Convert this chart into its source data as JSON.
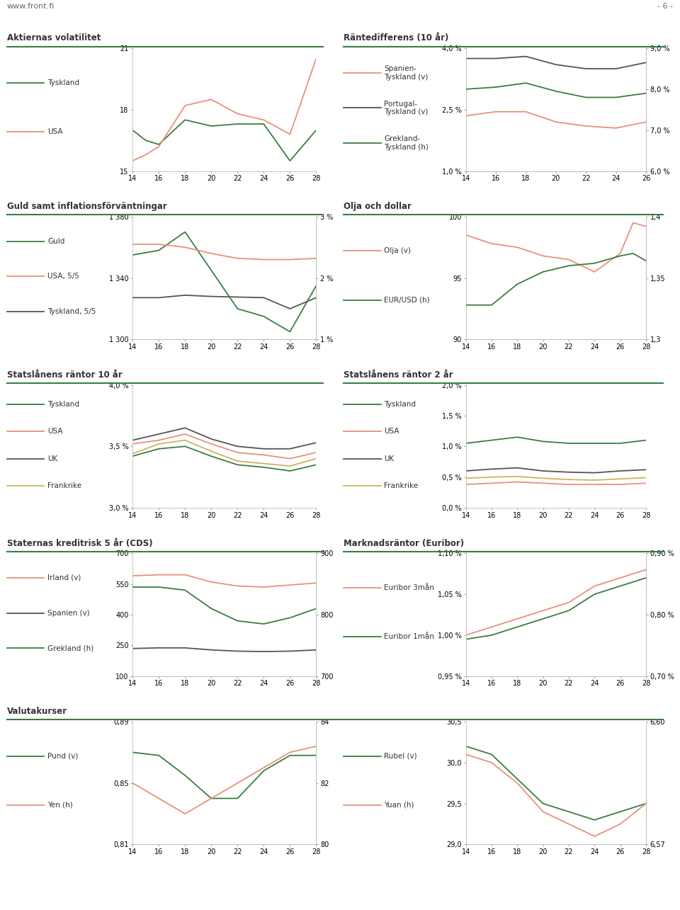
{
  "green": "#3a7d44",
  "salmon": "#e8917a",
  "dgray": "#555555",
  "khaki": "#c8b560",
  "bg": "#ffffff",
  "chart1": {
    "title": "Aktiernas volatilitet",
    "ylim": [
      15,
      21
    ],
    "yticks": [
      15,
      18,
      21
    ],
    "ytick_labels": [
      "15",
      "18",
      "21"
    ],
    "xticks": [
      14,
      16,
      18,
      20,
      22,
      24,
      26,
      28
    ],
    "legend": [
      "Tyskland",
      "USA"
    ],
    "legend_colors": [
      "#3a7d44",
      "#e8917a"
    ],
    "x": [
      14,
      15,
      16,
      18,
      20,
      22,
      24,
      26,
      28
    ],
    "y_tyskland": [
      17.0,
      16.5,
      16.3,
      17.5,
      17.2,
      17.3,
      17.3,
      15.5,
      17.0
    ],
    "y_usa": [
      15.5,
      15.8,
      16.2,
      18.2,
      18.5,
      17.8,
      17.5,
      16.8,
      20.5
    ]
  },
  "chart2": {
    "title": "Räntedifferens (10 år)",
    "ylim_l": [
      1.0,
      4.0
    ],
    "ylim_r": [
      6.0,
      9.0
    ],
    "yticks_l": [
      1.0,
      2.5,
      4.0
    ],
    "ytick_labels_l": [
      "1,0 %",
      "2,5 %",
      "4,0 %"
    ],
    "yticks_r": [
      6.0,
      7.0,
      8.0,
      9.0
    ],
    "ytick_labels_r": [
      "6,0 %",
      "7,0 %",
      "8,0 %",
      "9,0 %"
    ],
    "xticks": [
      14,
      16,
      18,
      20,
      22,
      24,
      26
    ],
    "legend": [
      "Spanien-\nTyskland (v)",
      "Portugal-\nTyskland (v)",
      "Grekland-\nTyskland (h)"
    ],
    "legend_colors": [
      "#e8917a",
      "#555555",
      "#3a7d44"
    ],
    "x": [
      14,
      16,
      18,
      20,
      22,
      24,
      26
    ],
    "y_spanien": [
      2.35,
      2.45,
      2.45,
      2.2,
      2.1,
      2.05,
      2.2
    ],
    "y_portugal": [
      3.75,
      3.75,
      3.8,
      3.6,
      3.5,
      3.5,
      3.65
    ],
    "y_grekland": [
      8.0,
      8.05,
      8.15,
      7.95,
      7.8,
      7.8,
      7.9
    ]
  },
  "chart3": {
    "title": "Guld samt inflationsförväntningar",
    "ylim_l": [
      1300,
      1380
    ],
    "ylim_r": [
      1.0,
      3.0
    ],
    "yticks_l": [
      1300,
      1340,
      1380
    ],
    "ytick_labels_l": [
      "1 300",
      "1 340",
      "1 380"
    ],
    "yticks_r": [
      1.0,
      2.0,
      3.0
    ],
    "ytick_labels_r": [
      "1 %",
      "2 %",
      "3 %"
    ],
    "xticks": [
      14,
      16,
      18,
      20,
      22,
      24,
      26,
      28
    ],
    "legend": [
      "Guld",
      "USA, 5/5",
      "Tyskland, 5/5"
    ],
    "legend_colors": [
      "#3a7d44",
      "#e8917a",
      "#555555"
    ],
    "x": [
      14,
      16,
      18,
      20,
      22,
      24,
      26,
      28
    ],
    "y_guld": [
      1355,
      1358,
      1370,
      1345,
      1320,
      1315,
      1305,
      1335
    ],
    "y_usa55": [
      2.55,
      2.55,
      2.5,
      2.4,
      2.32,
      2.3,
      2.3,
      2.32
    ],
    "y_de55": [
      1.68,
      1.68,
      1.72,
      1.7,
      1.69,
      1.68,
      1.5,
      1.68
    ]
  },
  "chart4": {
    "title": "Olja och dollar",
    "ylim_l": [
      90,
      100
    ],
    "ylim_r": [
      1.3,
      1.4
    ],
    "yticks_l": [
      90,
      95,
      100
    ],
    "ytick_labels_l": [
      "90",
      "95",
      "100"
    ],
    "yticks_r": [
      1.3,
      1.35,
      1.4
    ],
    "ytick_labels_r": [
      "1,3",
      "1,35",
      "1,4"
    ],
    "xticks": [
      14,
      16,
      18,
      20,
      22,
      24,
      26,
      28
    ],
    "legend": [
      "Olja (v)",
      "EUR/USD (h)"
    ],
    "legend_colors": [
      "#e8917a",
      "#3a7d44"
    ],
    "x": [
      14,
      16,
      18,
      20,
      22,
      24,
      26,
      27,
      28
    ],
    "y_olja": [
      98.5,
      97.8,
      97.5,
      96.8,
      96.5,
      95.5,
      97.0,
      99.5,
      99.2
    ],
    "y_eurusd": [
      1.328,
      1.328,
      1.345,
      1.355,
      1.36,
      1.362,
      1.368,
      1.37,
      1.364
    ]
  },
  "chart5": {
    "title": "Statslånens räntor 10 år",
    "ylim": [
      3.0,
      4.0
    ],
    "yticks": [
      3.0,
      3.5,
      4.0
    ],
    "ytick_labels": [
      "3,0 %",
      "3,5 %",
      "4,0 %"
    ],
    "xticks": [
      14,
      16,
      18,
      20,
      22,
      24,
      26,
      28
    ],
    "legend": [
      "Tyskland",
      "USA",
      "UK",
      "Frankrike"
    ],
    "legend_colors": [
      "#3a7d44",
      "#e8917a",
      "#555555",
      "#c8b560"
    ],
    "x": [
      14,
      16,
      18,
      20,
      22,
      24,
      26,
      28
    ],
    "y_de": [
      3.42,
      3.48,
      3.5,
      3.42,
      3.35,
      3.33,
      3.3,
      3.35
    ],
    "y_us": [
      3.52,
      3.55,
      3.6,
      3.52,
      3.45,
      3.43,
      3.4,
      3.45
    ],
    "y_uk": [
      3.55,
      3.6,
      3.65,
      3.56,
      3.5,
      3.48,
      3.48,
      3.53
    ],
    "y_fr": [
      3.44,
      3.52,
      3.55,
      3.46,
      3.38,
      3.36,
      3.34,
      3.4
    ]
  },
  "chart6": {
    "title": "Statslånens räntor 2 år",
    "ylim": [
      0.0,
      2.0
    ],
    "yticks": [
      0.0,
      0.5,
      1.0,
      1.5,
      2.0
    ],
    "ytick_labels": [
      "0,0 %",
      "0,5 %",
      "1,0 %",
      "1,5 %",
      "2,0 %"
    ],
    "xticks": [
      14,
      16,
      18,
      20,
      22,
      24,
      26,
      28
    ],
    "legend": [
      "Tyskland",
      "USA",
      "UK",
      "Frankrike"
    ],
    "legend_colors": [
      "#3a7d44",
      "#e8917a",
      "#555555",
      "#c8b560"
    ],
    "x": [
      14,
      16,
      18,
      20,
      22,
      24,
      26,
      28
    ],
    "y_de": [
      1.05,
      1.1,
      1.15,
      1.08,
      1.05,
      1.05,
      1.05,
      1.1
    ],
    "y_us": [
      0.38,
      0.4,
      0.42,
      0.4,
      0.38,
      0.38,
      0.38,
      0.4
    ],
    "y_uk": [
      0.6,
      0.63,
      0.65,
      0.6,
      0.58,
      0.57,
      0.6,
      0.62
    ],
    "y_fr": [
      0.48,
      0.5,
      0.51,
      0.48,
      0.46,
      0.45,
      0.47,
      0.49
    ]
  },
  "chart7": {
    "title": "Staternas kreditrisk 5 år (CDS)",
    "ylim_l": [
      100,
      700
    ],
    "ylim_r": [
      700,
      900
    ],
    "yticks_l": [
      100,
      250,
      400,
      550,
      700
    ],
    "ytick_labels_l": [
      "100",
      "250",
      "400",
      "550",
      "700"
    ],
    "yticks_r": [
      700,
      800,
      900
    ],
    "ytick_labels_r": [
      "700",
      "800",
      "900"
    ],
    "xticks": [
      14,
      16,
      18,
      20,
      22,
      24,
      26,
      28
    ],
    "legend": [
      "Irland (v)",
      "Spanien (v)",
      "Grekland (h)"
    ],
    "legend_colors": [
      "#e8917a",
      "#555555",
      "#3a7d44"
    ],
    "x": [
      14,
      16,
      18,
      20,
      22,
      24,
      26,
      28
    ],
    "y_irland": [
      590,
      595,
      595,
      560,
      540,
      535,
      545,
      555
    ],
    "y_spanien": [
      235,
      238,
      238,
      228,
      222,
      220,
      222,
      228
    ],
    "y_grekland": [
      845,
      845,
      840,
      810,
      790,
      785,
      795,
      810
    ]
  },
  "chart8": {
    "title": "Marknadsräntor (Euribor)",
    "ylim_l": [
      0.95,
      1.1
    ],
    "ylim_r": [
      0.7,
      0.9
    ],
    "yticks_l": [
      0.95,
      1.0,
      1.05,
      1.1
    ],
    "ytick_labels_l": [
      "0,95 %",
      "1,00 %",
      "1,05 %",
      "1,10 %"
    ],
    "yticks_r": [
      0.7,
      0.8,
      0.9
    ],
    "ytick_labels_r": [
      "0,70 %",
      "0,80 %",
      "0,90 %"
    ],
    "xticks": [
      14,
      16,
      18,
      20,
      22,
      24,
      26,
      28
    ],
    "legend": [
      "Euribor 3mån",
      "Euribor 1mån"
    ],
    "legend_colors": [
      "#e8917a",
      "#3a7d44"
    ],
    "x": [
      14,
      16,
      18,
      20,
      22,
      24,
      26,
      28
    ],
    "y_3m": [
      1.0,
      1.01,
      1.02,
      1.03,
      1.04,
      1.06,
      1.07,
      1.08
    ],
    "y_1m": [
      0.995,
      1.0,
      1.01,
      1.02,
      1.03,
      1.05,
      1.06,
      1.07
    ]
  },
  "chart9": {
    "title": "Valutakurser",
    "ylim_l": [
      0.81,
      0.89
    ],
    "ylim_r": [
      80,
      84
    ],
    "yticks_l": [
      0.81,
      0.85,
      0.89
    ],
    "ytick_labels_l": [
      "0,81",
      "0,85",
      "0,89"
    ],
    "yticks_r": [
      80,
      82,
      84
    ],
    "ytick_labels_r": [
      "80",
      "82",
      "84"
    ],
    "xticks": [
      14,
      16,
      18,
      20,
      22,
      24,
      26,
      28
    ],
    "legend": [
      "Pund (v)",
      "Yen (h)"
    ],
    "legend_colors": [
      "#3a7d44",
      "#e8917a"
    ],
    "x": [
      14,
      16,
      18,
      20,
      22,
      24,
      26,
      28
    ],
    "y_pund": [
      0.87,
      0.868,
      0.855,
      0.84,
      0.84,
      0.858,
      0.868,
      0.868
    ],
    "y_yen": [
      82.0,
      81.5,
      81.0,
      81.5,
      82.0,
      82.5,
      83.0,
      83.2
    ]
  },
  "chart10": {
    "ylim_l": [
      29.0,
      30.5
    ],
    "ylim_r": [
      6.57,
      6.6
    ],
    "yticks_l": [
      29.0,
      29.5,
      30.0,
      30.5
    ],
    "ytick_labels_l": [
      "29,0",
      "29,5",
      "30,0",
      "30,5"
    ],
    "yticks_r": [
      6.57,
      6.6
    ],
    "ytick_labels_r": [
      "6,57",
      "6,60"
    ],
    "xticks": [
      14,
      16,
      18,
      20,
      22,
      24,
      26,
      28
    ],
    "legend": [
      "Rubel (v)",
      "Yuan (h)"
    ],
    "legend_colors": [
      "#3a7d44",
      "#e8917a"
    ],
    "x": [
      14,
      16,
      18,
      20,
      22,
      24,
      26,
      28
    ],
    "y_rubel": [
      30.2,
      30.1,
      29.8,
      29.5,
      29.4,
      29.3,
      29.4,
      29.5
    ],
    "y_yuan": [
      6.592,
      6.59,
      6.585,
      6.578,
      6.575,
      6.572,
      6.575,
      6.58
    ]
  }
}
